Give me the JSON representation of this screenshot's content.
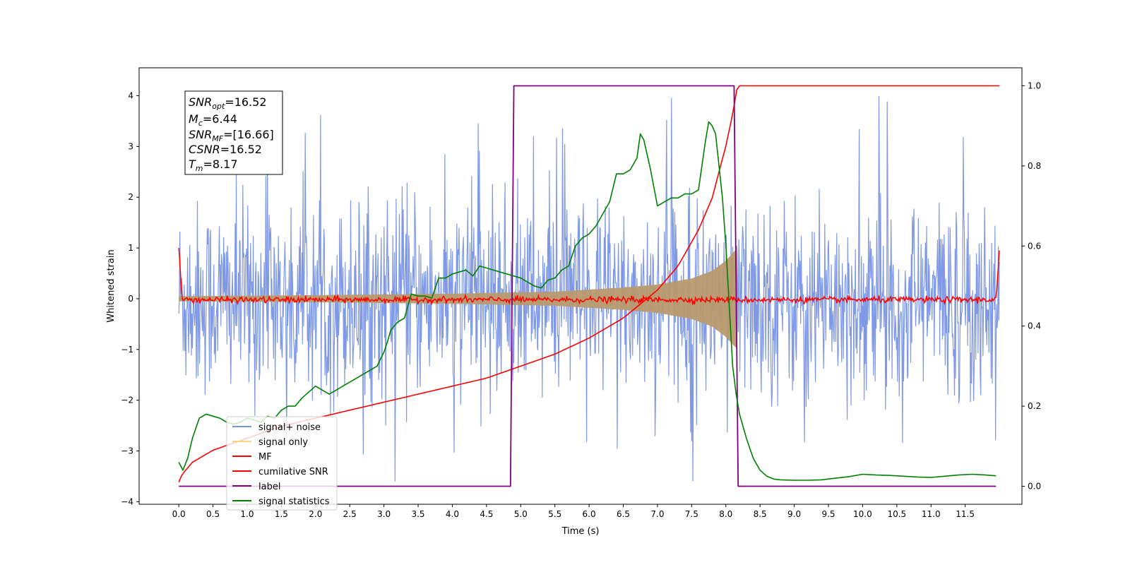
{
  "chart_data": {
    "type": "line",
    "xlabel": "Time (s)",
    "ylabel": "Whitened strain",
    "xlim": [
      -0.58,
      12.33
    ],
    "ylim_left": [
      -4.05,
      4.55
    ],
    "ylim_right": [
      -0.045,
      1.045
    ],
    "x_ticks": [
      "0.0",
      "0.5",
      "1.0",
      "1.5",
      "2.0",
      "2.5",
      "3.0",
      "3.5",
      "4.0",
      "4.5",
      "5.0",
      "5.5",
      "6.0",
      "6.5",
      "7.0",
      "7.5",
      "8.0",
      "8.5",
      "9.0",
      "9.5",
      "10.0",
      "10.5",
      "11.0",
      "11.5"
    ],
    "y_ticks_left": [
      "−4",
      "−3",
      "−2",
      "−1",
      "0",
      "1",
      "2",
      "3",
      "4"
    ],
    "y_ticks_right": [
      "0.0",
      "0.2",
      "0.4",
      "0.6",
      "0.8",
      "1.0"
    ],
    "legend": {
      "placement": "lower-left",
      "entries": [
        {
          "label": "signal+ noise",
          "color": "#7894e6"
        },
        {
          "label": "signal only",
          "color": "#ffd27f"
        },
        {
          "label": "MF",
          "color": "#ff0000"
        },
        {
          "label": "cumilative SNR",
          "color": "#ff0000"
        },
        {
          "label": "label",
          "color": "#800080"
        },
        {
          "label": "signal statistics",
          "color": "#008000"
        }
      ]
    },
    "annotation": [
      {
        "name": "SNR",
        "sub": "opt",
        "value": "=16.52"
      },
      {
        "name": "M",
        "sub": "c",
        "value": "=6.44"
      },
      {
        "name": "SNR",
        "sub": "MF",
        "value": "=[16.66]"
      },
      {
        "name": "CSNR",
        "sub": "",
        "value": "=16.52"
      },
      {
        "name": "T",
        "sub": "m",
        "value": "=8.17"
      }
    ],
    "series": [
      {
        "name": "signal+ noise",
        "axis": "left",
        "color": "#7894e6",
        "x_range": [
          0.0,
          12.0
        ],
        "samples": 1500,
        "typical_range": [
          -2.0,
          2.0
        ],
        "peak_max": 4.15,
        "peak_min": -3.6
      },
      {
        "name": "signal only",
        "axis": "left",
        "color": "#b89a6e",
        "x_range": [
          0.0,
          8.17
        ],
        "envelope": {
          "x": [
            0.0,
            2.0,
            4.0,
            5.5,
            6.5,
            7.0,
            7.5,
            7.8,
            8.0,
            8.17
          ],
          "amp": [
            0.05,
            0.07,
            0.1,
            0.14,
            0.22,
            0.28,
            0.4,
            0.55,
            0.75,
            1.0
          ]
        }
      },
      {
        "name": "MF",
        "axis": "left",
        "color": "#ff0000",
        "x_range": [
          0.0,
          12.0
        ],
        "edge_values": [
          1.0,
          0.95
        ],
        "noise_amp": 0.05
      },
      {
        "name": "cumilative SNR",
        "axis": "right",
        "color": "#ff0000",
        "x": [
          0.0,
          0.05,
          0.2,
          0.5,
          1.0,
          1.5,
          2.0,
          2.5,
          3.0,
          3.5,
          4.0,
          4.5,
          5.0,
          5.5,
          6.0,
          6.5,
          7.0,
          7.3,
          7.6,
          7.8,
          8.0,
          8.1,
          8.17,
          12.0
        ],
        "y": [
          0.01,
          0.03,
          0.06,
          0.09,
          0.12,
          0.15,
          0.17,
          0.19,
          0.21,
          0.23,
          0.25,
          0.27,
          0.3,
          0.33,
          0.37,
          0.42,
          0.49,
          0.55,
          0.64,
          0.72,
          0.85,
          0.93,
          1.0,
          1.0
        ]
      },
      {
        "name": "label",
        "axis": "right",
        "color": "#800080",
        "x": [
          0.0,
          4.85,
          4.9,
          8.12,
          8.18,
          11.95
        ],
        "y": [
          0.0,
          0.0,
          1.0,
          1.0,
          0.0,
          0.0
        ]
      },
      {
        "name": "signal statistics",
        "axis": "right",
        "color": "#008000",
        "x": [
          0.0,
          0.06,
          0.13,
          0.2,
          0.3,
          0.4,
          0.5,
          0.6,
          0.7,
          0.8,
          0.9,
          1.0,
          1.1,
          1.2,
          1.3,
          1.4,
          1.5,
          1.6,
          1.7,
          1.8,
          1.9,
          2.0,
          2.1,
          2.2,
          2.3,
          2.4,
          2.5,
          2.6,
          2.7,
          2.8,
          2.9,
          3.0,
          3.05,
          3.1,
          3.2,
          3.3,
          3.4,
          3.5,
          3.6,
          3.7,
          3.8,
          3.9,
          4.0,
          4.1,
          4.2,
          4.3,
          4.4,
          4.5,
          4.6,
          4.7,
          4.8,
          4.9,
          5.0,
          5.1,
          5.2,
          5.3,
          5.4,
          5.5,
          5.6,
          5.7,
          5.8,
          5.9,
          6.0,
          6.1,
          6.2,
          6.3,
          6.35,
          6.4,
          6.5,
          6.6,
          6.7,
          6.75,
          6.8,
          6.9,
          7.0,
          7.1,
          7.2,
          7.3,
          7.4,
          7.5,
          7.6,
          7.7,
          7.75,
          7.8,
          7.85,
          7.9,
          7.95,
          8.0,
          8.05,
          8.1,
          8.15,
          8.2,
          8.3,
          8.4,
          8.5,
          8.6,
          8.7,
          8.8,
          9.0,
          9.2,
          9.4,
          9.6,
          9.8,
          10.0,
          10.2,
          10.4,
          10.6,
          10.8,
          11.0,
          11.2,
          11.4,
          11.6,
          11.8,
          11.95
        ],
        "y": [
          0.06,
          0.04,
          0.07,
          0.12,
          0.17,
          0.18,
          0.175,
          0.17,
          0.16,
          0.155,
          0.16,
          0.17,
          0.165,
          0.16,
          0.175,
          0.17,
          0.19,
          0.2,
          0.2,
          0.22,
          0.235,
          0.25,
          0.24,
          0.23,
          0.24,
          0.25,
          0.26,
          0.27,
          0.28,
          0.29,
          0.3,
          0.335,
          0.36,
          0.39,
          0.41,
          0.42,
          0.48,
          0.475,
          0.475,
          0.47,
          0.52,
          0.52,
          0.53,
          0.535,
          0.54,
          0.525,
          0.55,
          0.545,
          0.54,
          0.535,
          0.53,
          0.525,
          0.52,
          0.51,
          0.5,
          0.495,
          0.515,
          0.52,
          0.54,
          0.55,
          0.6,
          0.62,
          0.63,
          0.65,
          0.68,
          0.71,
          0.745,
          0.78,
          0.78,
          0.79,
          0.82,
          0.88,
          0.865,
          0.79,
          0.7,
          0.71,
          0.72,
          0.72,
          0.73,
          0.73,
          0.74,
          0.86,
          0.91,
          0.9,
          0.88,
          0.8,
          0.72,
          0.6,
          0.45,
          0.3,
          0.23,
          0.18,
          0.12,
          0.07,
          0.04,
          0.025,
          0.018,
          0.016,
          0.015,
          0.015,
          0.016,
          0.02,
          0.024,
          0.03,
          0.028,
          0.027,
          0.025,
          0.023,
          0.022,
          0.025,
          0.028,
          0.03,
          0.028,
          0.026
        ]
      }
    ]
  }
}
